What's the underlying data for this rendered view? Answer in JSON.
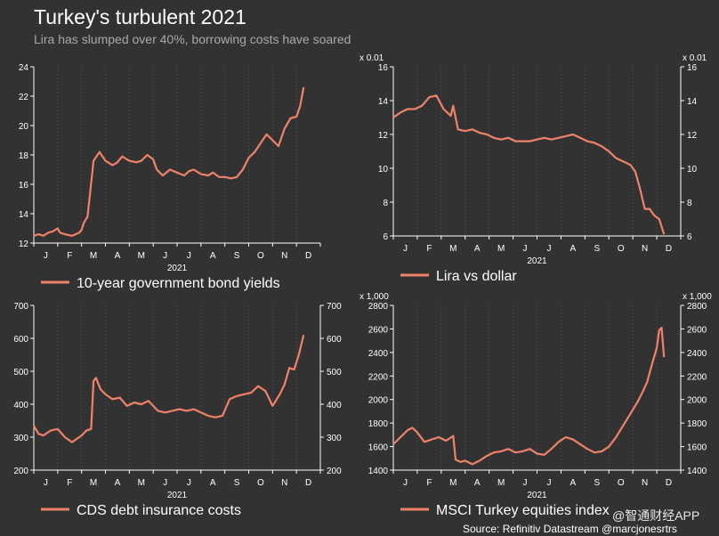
{
  "header": {
    "title": "Turkey's turbulent 2021",
    "subtitle": "Lira has slumped over 40%, borrowing costs have soared"
  },
  "footer": {
    "source": "Source: Refinitiv Datastream @marcjonesrtrs",
    "watermark": "@智通财经APP"
  },
  "colors": {
    "line": "#f0826a",
    "background": "#323232",
    "axis": "#ffffff",
    "grid": "#555555"
  },
  "chart_data": [
    {
      "type": "line",
      "legend": "10-year government bond yields",
      "year_label": "2021",
      "x_ticks": [
        "J",
        "F",
        "M",
        "A",
        "M",
        "J",
        "J",
        "A",
        "S",
        "O",
        "N",
        "D"
      ],
      "ylim": [
        12,
        24
      ],
      "y_ticks": [
        12,
        14,
        16,
        18,
        20,
        22,
        24
      ],
      "y_axis_side": "left",
      "unit_label": "",
      "x": [
        0,
        0.2,
        0.4,
        0.6,
        0.8,
        1.0,
        1.1,
        1.3,
        1.6,
        1.9,
        2.0,
        2.1,
        2.25,
        2.5,
        2.75,
        3.0,
        3.3,
        3.5,
        3.7,
        4.0,
        4.3,
        4.5,
        4.75,
        5.0,
        5.15,
        5.4,
        5.7,
        6.0,
        6.3,
        6.5,
        6.7,
        7.0,
        7.3,
        7.5,
        7.75,
        8.0,
        8.25,
        8.5,
        8.75,
        9.0,
        9.25,
        9.5,
        9.75,
        10.0,
        10.25,
        10.5,
        10.75,
        11.0,
        11.15,
        11.3
      ],
      "y": [
        12.5,
        12.6,
        12.5,
        12.7,
        12.8,
        13.0,
        12.7,
        12.6,
        12.5,
        12.7,
        12.9,
        13.4,
        13.8,
        17.6,
        18.2,
        17.6,
        17.3,
        17.5,
        17.9,
        17.6,
        17.5,
        17.6,
        18.0,
        17.7,
        17.0,
        16.6,
        17.0,
        16.8,
        16.6,
        16.9,
        17.0,
        16.7,
        16.6,
        16.8,
        16.5,
        16.5,
        16.4,
        16.5,
        17.0,
        17.8,
        18.2,
        18.8,
        19.4,
        19.0,
        18.6,
        19.8,
        20.5,
        20.6,
        21.3,
        22.6
      ]
    },
    {
      "type": "line",
      "legend": "Lira vs dollar",
      "year_label": "2021",
      "x_ticks": [
        "J",
        "F",
        "M",
        "A",
        "M",
        "J",
        "J",
        "A",
        "S",
        "O",
        "N",
        "D"
      ],
      "ylim": [
        6,
        16
      ],
      "y_ticks": [
        6,
        8,
        10,
        12,
        14,
        16
      ],
      "y_axis_side": "both",
      "unit_label": "x 0.01",
      "x": [
        0,
        0.3,
        0.6,
        0.9,
        1.2,
        1.5,
        1.8,
        2.1,
        2.4,
        2.5,
        2.7,
        3.0,
        3.3,
        3.6,
        3.9,
        4.2,
        4.5,
        4.8,
        5.1,
        5.4,
        5.7,
        6.0,
        6.3,
        6.6,
        6.9,
        7.2,
        7.5,
        7.8,
        8.1,
        8.4,
        8.7,
        9.0,
        9.3,
        9.6,
        9.9,
        10.1,
        10.3,
        10.5,
        10.7,
        10.9,
        11.1,
        11.3
      ],
      "y": [
        13.0,
        13.3,
        13.5,
        13.5,
        13.7,
        14.2,
        14.3,
        13.5,
        13.1,
        13.7,
        12.3,
        12.2,
        12.3,
        12.1,
        12.0,
        11.8,
        11.7,
        11.8,
        11.6,
        11.6,
        11.6,
        11.7,
        11.8,
        11.7,
        11.8,
        11.9,
        12.0,
        11.8,
        11.6,
        11.5,
        11.3,
        11.0,
        10.6,
        10.4,
        10.2,
        9.8,
        8.8,
        7.6,
        7.6,
        7.2,
        7.0,
        6.1
      ]
    },
    {
      "type": "line",
      "legend": "CDS debt insurance costs",
      "year_label": "2021",
      "x_ticks": [
        "J",
        "F",
        "M",
        "A",
        "M",
        "J",
        "J",
        "A",
        "S",
        "O",
        "N",
        "D"
      ],
      "ylim": [
        200,
        700
      ],
      "y_ticks": [
        200,
        300,
        400,
        500,
        600,
        700
      ],
      "y_axis_side": "both",
      "unit_label": "",
      "x": [
        0,
        0.2,
        0.4,
        0.7,
        1.0,
        1.3,
        1.6,
        1.8,
        2.0,
        2.2,
        2.4,
        2.5,
        2.6,
        2.8,
        3.0,
        3.3,
        3.6,
        3.9,
        4.2,
        4.5,
        4.8,
        5.0,
        5.2,
        5.5,
        5.8,
        6.1,
        6.4,
        6.7,
        7.0,
        7.3,
        7.6,
        7.9,
        8.2,
        8.5,
        8.8,
        9.1,
        9.4,
        9.7,
        10.0,
        10.3,
        10.5,
        10.7,
        10.9,
        11.1,
        11.3
      ],
      "y": [
        335,
        310,
        305,
        320,
        325,
        300,
        285,
        295,
        305,
        320,
        325,
        470,
        480,
        445,
        430,
        415,
        420,
        395,
        405,
        400,
        410,
        395,
        380,
        375,
        380,
        385,
        380,
        385,
        375,
        365,
        360,
        365,
        415,
        425,
        430,
        435,
        455,
        440,
        395,
        430,
        460,
        510,
        505,
        550,
        610
      ]
    },
    {
      "type": "line",
      "legend": "MSCI Turkey equities index",
      "year_label": "2021",
      "x_ticks": [
        "J",
        "F",
        "M",
        "A",
        "M",
        "J",
        "J",
        "A",
        "S",
        "O",
        "N",
        "D"
      ],
      "ylim": [
        1400,
        2800
      ],
      "y_ticks": [
        1400,
        1600,
        1800,
        2000,
        2200,
        2400,
        2600,
        2800
      ],
      "y_axis_side": "both",
      "unit_label": "x 1,000",
      "x": [
        0,
        0.3,
        0.6,
        0.8,
        1.0,
        1.3,
        1.6,
        1.9,
        2.2,
        2.5,
        2.6,
        2.8,
        3.0,
        3.3,
        3.6,
        3.9,
        4.2,
        4.5,
        4.8,
        5.1,
        5.4,
        5.7,
        6.0,
        6.3,
        6.6,
        6.9,
        7.2,
        7.5,
        7.8,
        8.1,
        8.4,
        8.7,
        9.0,
        9.3,
        9.6,
        9.9,
        10.2,
        10.4,
        10.6,
        10.8,
        11.0,
        11.1,
        11.2,
        11.3
      ],
      "y": [
        1620,
        1680,
        1740,
        1760,
        1720,
        1640,
        1660,
        1680,
        1650,
        1690,
        1490,
        1470,
        1480,
        1450,
        1480,
        1520,
        1550,
        1560,
        1580,
        1550,
        1560,
        1580,
        1540,
        1530,
        1580,
        1640,
        1680,
        1660,
        1620,
        1580,
        1550,
        1560,
        1600,
        1680,
        1780,
        1880,
        1980,
        2060,
        2150,
        2300,
        2440,
        2590,
        2610,
        2360
      ]
    }
  ]
}
